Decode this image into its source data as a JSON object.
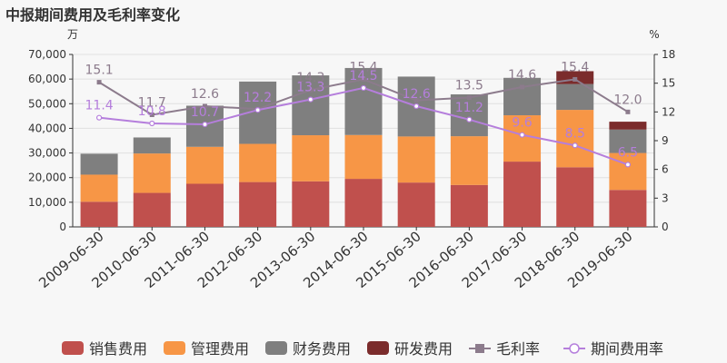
{
  "chart_data": {
    "type": "bar",
    "title": "中报期间费用及毛利率变化",
    "left_unit": "万",
    "right_unit": "%",
    "categories": [
      "2009-06-30",
      "2010-06-30",
      "2011-06-30",
      "2012-06-30",
      "2013-06-30",
      "2014-06-30",
      "2015-06-30",
      "2016-06-30",
      "2017-06-30",
      "2018-06-30",
      "2019-06-30"
    ],
    "ylim_left": [
      0,
      70000
    ],
    "yticks_left": [
      "0",
      "10,000",
      "20,000",
      "30,000",
      "40,000",
      "50,000",
      "60,000",
      "70,000"
    ],
    "ylim_right": [
      0,
      18
    ],
    "yticks_right": [
      "0",
      "3",
      "6",
      "9",
      "12",
      "15",
      "18"
    ],
    "stack_series": [
      {
        "name": "销售费用",
        "color": "#c0504d",
        "values": [
          10200,
          13800,
          17500,
          18200,
          18500,
          19500,
          18000,
          17000,
          26500,
          24200,
          15000
        ]
      },
      {
        "name": "管理费用",
        "color": "#f79646",
        "values": [
          11000,
          16000,
          15000,
          15500,
          18700,
          17800,
          18700,
          19800,
          18800,
          23300,
          15000
        ]
      },
      {
        "name": "财务费用",
        "color": "#7f7f7f",
        "values": [
          8500,
          6500,
          16700,
          25300,
          24300,
          27200,
          24300,
          17000,
          15200,
          10500,
          9500
        ]
      },
      {
        "name": "研发费用",
        "color": "#7b2c2c",
        "values": [
          0,
          0,
          0,
          0,
          0,
          0,
          0,
          0,
          0,
          5200,
          3200
        ]
      }
    ],
    "line_series": [
      {
        "name": "毛利率",
        "color": "#8c7b8c",
        "marker": "square",
        "values": [
          15.1,
          11.7,
          12.6,
          12.3,
          14.3,
          15.4,
          13.2,
          13.5,
          14.6,
          15.4,
          12.0
        ],
        "labels": [
          "15.1",
          "11.7",
          "12.6",
          "12.3",
          "14.3",
          "15.4",
          "",
          "13.5",
          "14.6",
          "15.4",
          "12.0"
        ]
      },
      {
        "name": "期间费用率",
        "color": "#b57edc",
        "marker": "circle",
        "values": [
          11.4,
          10.8,
          10.7,
          12.2,
          13.3,
          14.5,
          12.6,
          11.2,
          9.6,
          8.5,
          6.5
        ],
        "labels": [
          "11.4",
          "10.8",
          "10.7",
          "12.2",
          "13.3",
          "14.5",
          "12.6",
          "11.2",
          "9.6",
          "8.5",
          "6.5"
        ]
      }
    ],
    "legend_position": "bottom",
    "grid": true
  }
}
